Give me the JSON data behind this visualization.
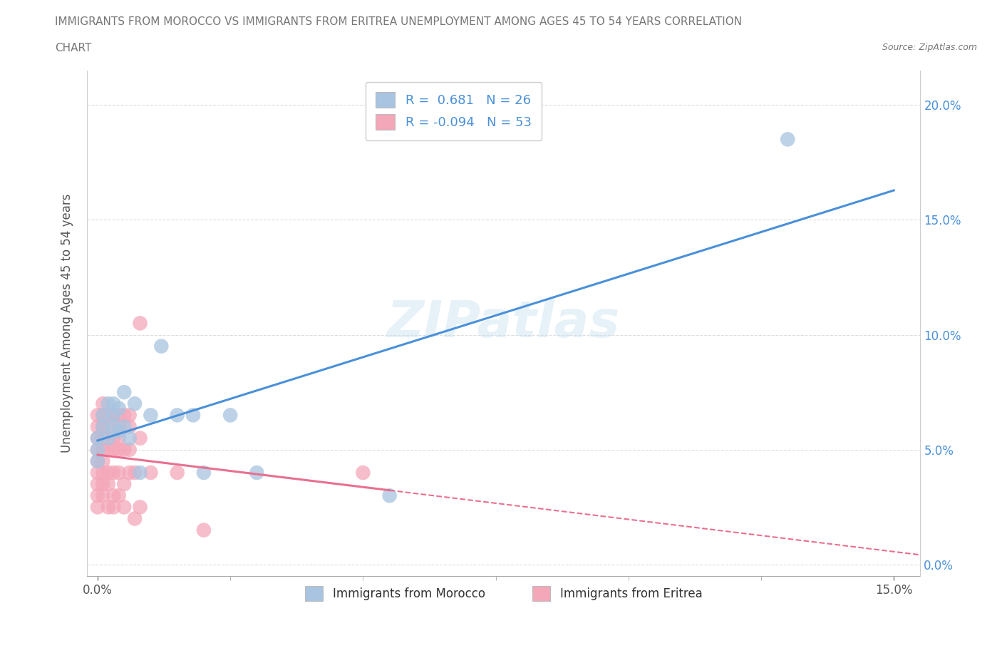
{
  "title_line1": "IMMIGRANTS FROM MOROCCO VS IMMIGRANTS FROM ERITREA UNEMPLOYMENT AMONG AGES 45 TO 54 YEARS CORRELATION",
  "title_line2": "CHART",
  "source_text": "Source: ZipAtlas.com",
  "ylabel": "Unemployment Among Ages 45 to 54 years",
  "xlabel_morocco": "Immigrants from Morocco",
  "xlabel_eritrea": "Immigrants from Eritrea",
  "xlim": [
    -0.002,
    0.155
  ],
  "ylim": [
    -0.005,
    0.215
  ],
  "yticks": [
    0.0,
    0.05,
    0.1,
    0.15,
    0.2
  ],
  "ytick_labels": [
    "0.0%",
    "5.0%",
    "10.0%",
    "15.0%",
    "20.0%"
  ],
  "xticks": [
    0.0,
    0.15
  ],
  "xtick_labels": [
    "0.0%",
    "15.0%"
  ],
  "xticks_minor": [
    0.025,
    0.05,
    0.075,
    0.1,
    0.125
  ],
  "morocco_color": "#a8c4e0",
  "eritrea_color": "#f4a7b9",
  "trendline_morocco_color": "#4a90d9",
  "trendline_eritrea_color": "#e87090",
  "R_morocco": 0.681,
  "N_morocco": 26,
  "R_eritrea": -0.094,
  "N_eritrea": 53,
  "watermark": "ZIPatlas",
  "morocco_x": [
    0.0,
    0.0,
    0.0,
    0.001,
    0.001,
    0.002,
    0.002,
    0.003,
    0.003,
    0.003,
    0.004,
    0.004,
    0.005,
    0.005,
    0.006,
    0.007,
    0.008,
    0.01,
    0.012,
    0.015,
    0.018,
    0.02,
    0.025,
    0.03,
    0.055,
    0.13
  ],
  "morocco_y": [
    0.045,
    0.05,
    0.055,
    0.06,
    0.065,
    0.055,
    0.07,
    0.06,
    0.065,
    0.07,
    0.058,
    0.068,
    0.06,
    0.075,
    0.055,
    0.07,
    0.04,
    0.065,
    0.095,
    0.065,
    0.065,
    0.04,
    0.065,
    0.04,
    0.03,
    0.185
  ],
  "eritrea_x": [
    0.0,
    0.0,
    0.0,
    0.0,
    0.0,
    0.0,
    0.0,
    0.0,
    0.0,
    0.001,
    0.001,
    0.001,
    0.001,
    0.001,
    0.001,
    0.001,
    0.001,
    0.001,
    0.002,
    0.002,
    0.002,
    0.002,
    0.002,
    0.002,
    0.003,
    0.003,
    0.003,
    0.003,
    0.003,
    0.003,
    0.004,
    0.004,
    0.004,
    0.004,
    0.004,
    0.004,
    0.005,
    0.005,
    0.005,
    0.005,
    0.006,
    0.006,
    0.006,
    0.006,
    0.007,
    0.007,
    0.008,
    0.008,
    0.008,
    0.01,
    0.015,
    0.02,
    0.05
  ],
  "eritrea_y": [
    0.04,
    0.045,
    0.05,
    0.055,
    0.06,
    0.065,
    0.035,
    0.025,
    0.03,
    0.035,
    0.04,
    0.045,
    0.05,
    0.055,
    0.06,
    0.065,
    0.07,
    0.03,
    0.035,
    0.04,
    0.05,
    0.06,
    0.065,
    0.025,
    0.03,
    0.04,
    0.05,
    0.055,
    0.065,
    0.025,
    0.03,
    0.04,
    0.05,
    0.055,
    0.06,
    0.065,
    0.025,
    0.035,
    0.05,
    0.065,
    0.04,
    0.05,
    0.06,
    0.065,
    0.02,
    0.04,
    0.025,
    0.055,
    0.105,
    0.04,
    0.04,
    0.015,
    0.04
  ]
}
